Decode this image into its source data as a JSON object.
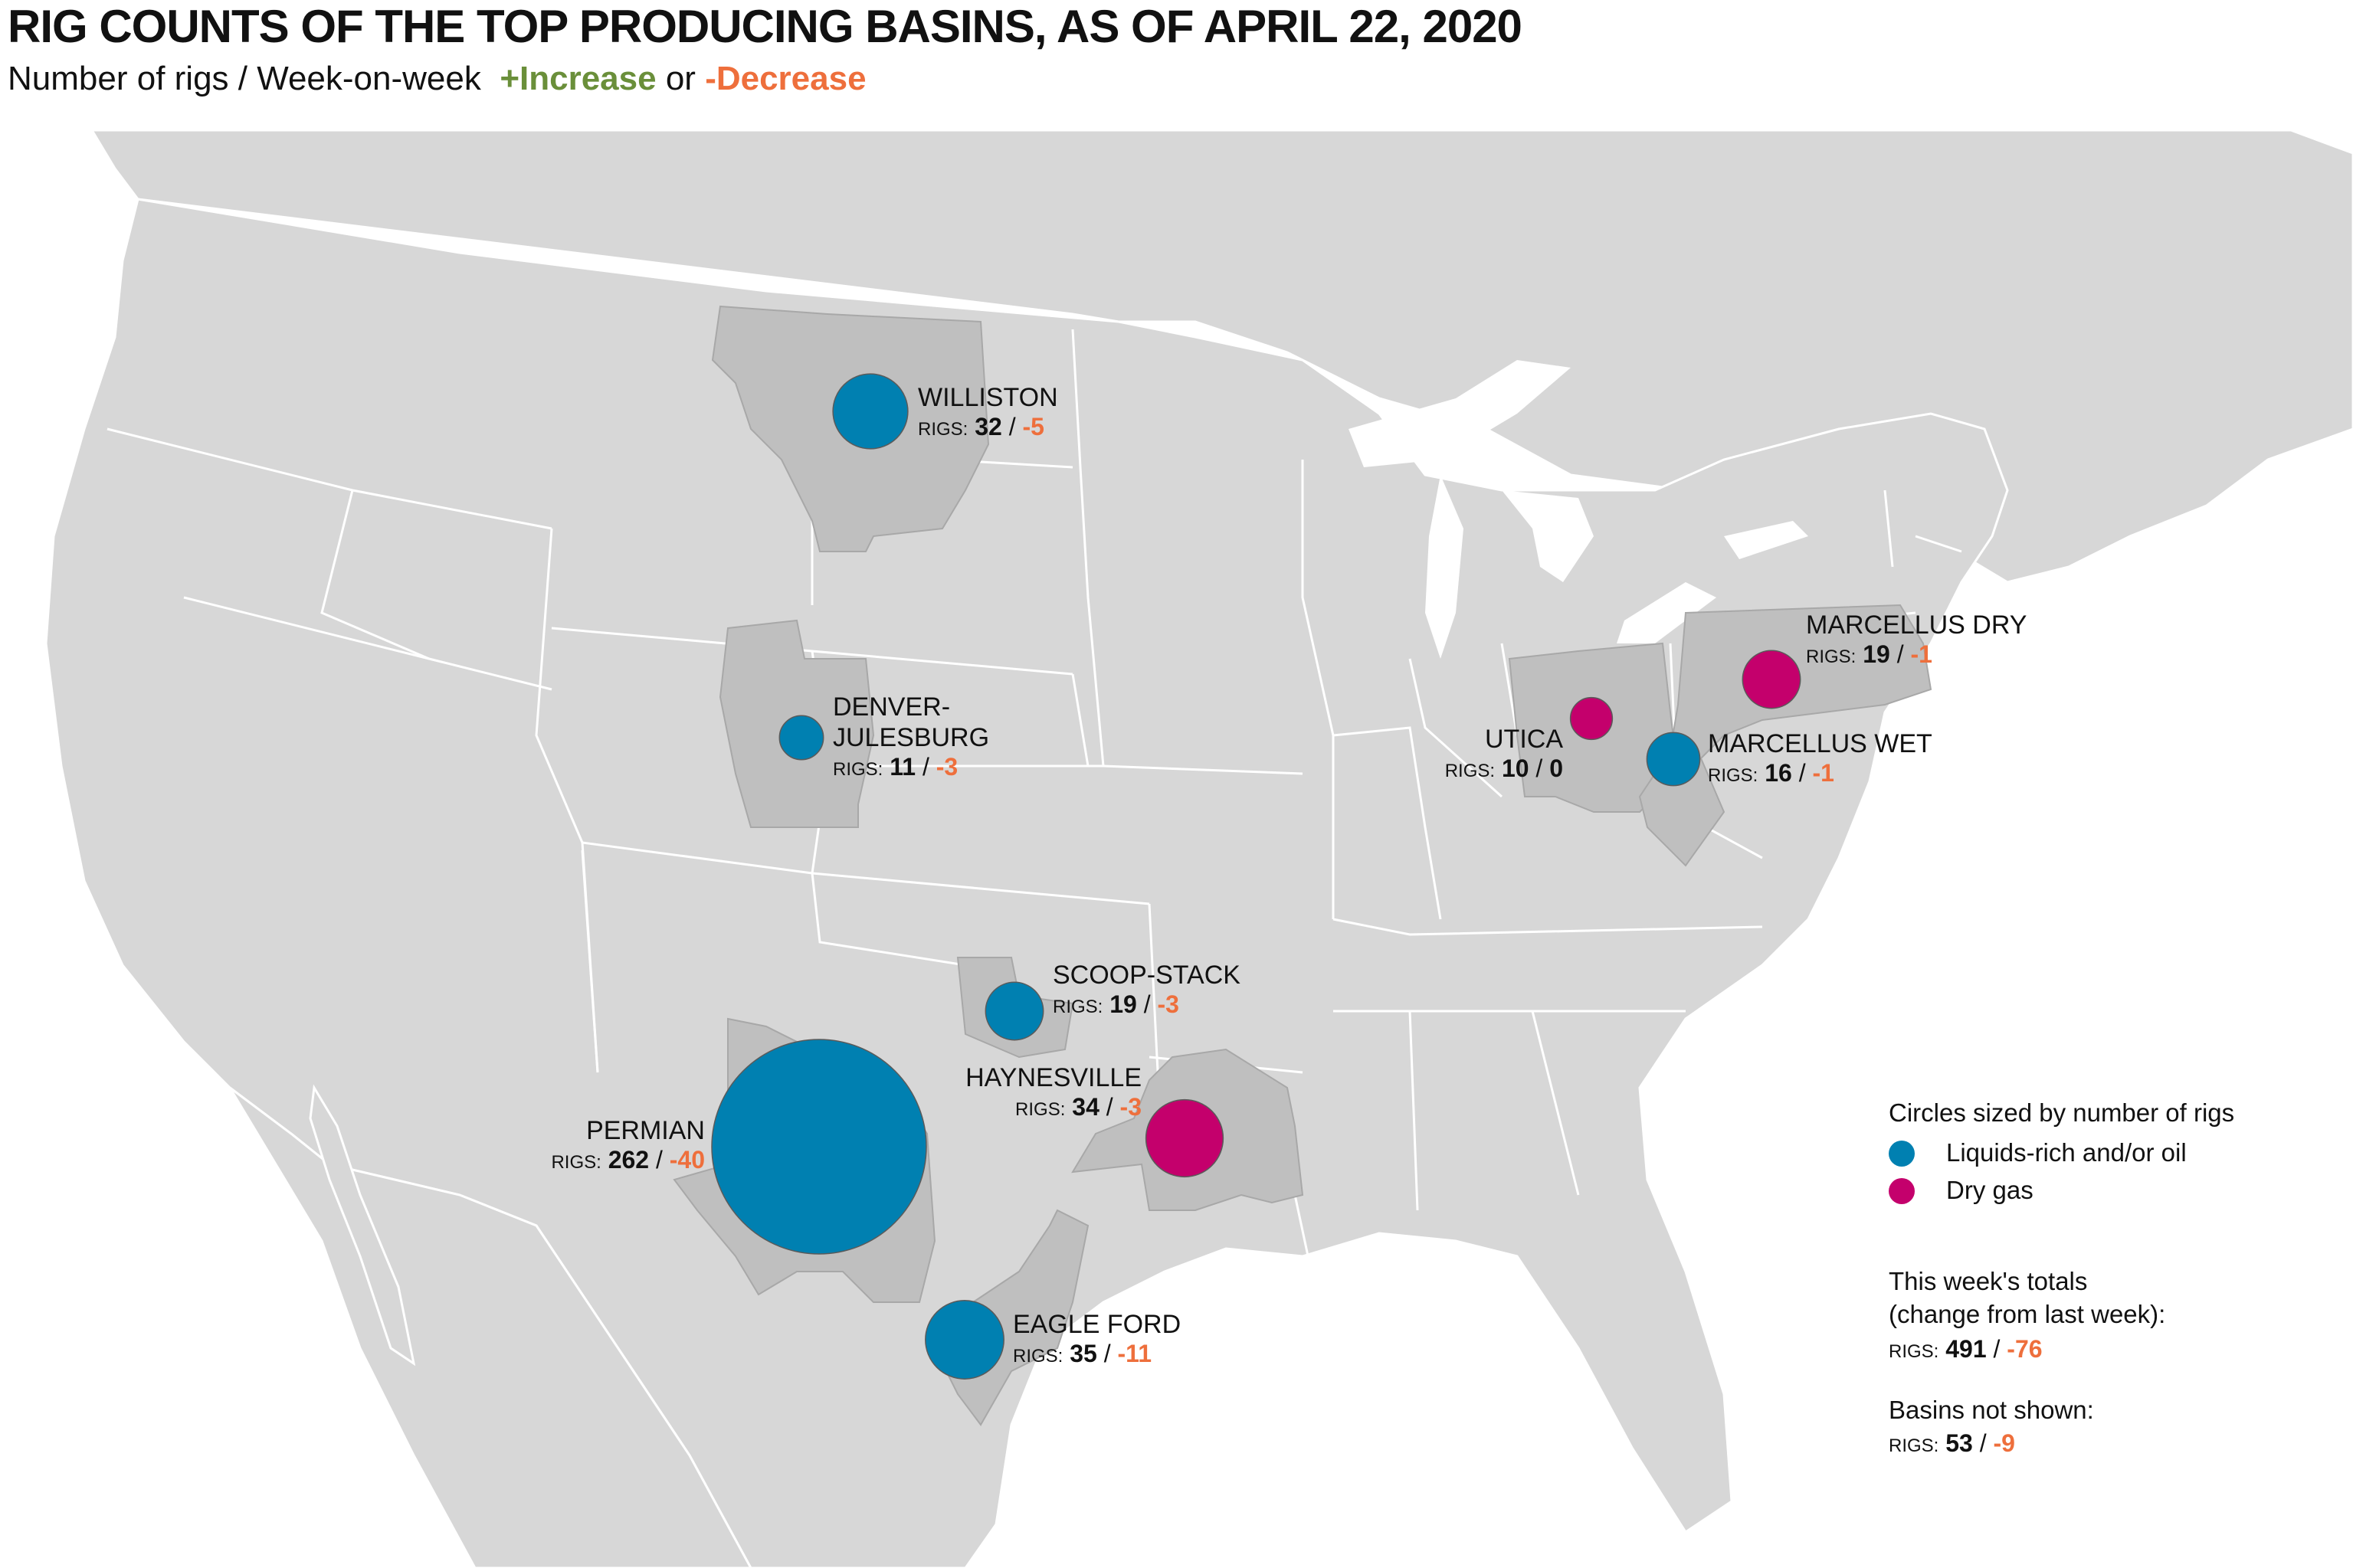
{
  "title": "RIG COUNTS OF THE TOP PRODUCING BASINS, AS OF APRIL 22, 2020",
  "subtitle": {
    "prefix": "Number of rigs / Week-on-week",
    "increase": "+Increase",
    "or": "or",
    "decrease": "-Decrease"
  },
  "colors": {
    "liquids": "#0080b1",
    "dry_gas": "#c4006c",
    "decrease": "#ee6f3c",
    "increase": "#6a8f3a",
    "land": "#d7d7d7",
    "basin": "#bfbfbf"
  },
  "rigs_prefix": "RIGS:",
  "separator": "/",
  "basins": [
    {
      "id": "williston",
      "name": "WILLISTON",
      "rigs": "32",
      "change": "-5",
      "type": "liquids"
    },
    {
      "id": "denver",
      "name_line1": "DENVER-",
      "name_line2": "JULESBURG",
      "rigs": "11",
      "change": "-3",
      "type": "liquids"
    },
    {
      "id": "scoop",
      "name": "SCOOP-STACK",
      "rigs": "19",
      "change": "-3",
      "type": "liquids"
    },
    {
      "id": "permian",
      "name": "PERMIAN",
      "rigs": "262",
      "change": "-40",
      "type": "liquids"
    },
    {
      "id": "haynesville",
      "name": "HAYNESVILLE",
      "rigs": "34",
      "change": "-3",
      "type": "dry_gas"
    },
    {
      "id": "eagleford",
      "name": "EAGLE FORD",
      "rigs": "35",
      "change": "-11",
      "type": "liquids"
    },
    {
      "id": "utica",
      "name": "UTICA",
      "rigs": "10",
      "change": "0",
      "type": "dry_gas"
    },
    {
      "id": "marcellus_dry",
      "name": "MARCELLUS DRY",
      "rigs": "19",
      "change": "-1",
      "type": "dry_gas"
    },
    {
      "id": "marcellus_wet",
      "name": "MARCELLUS WET",
      "rigs": "16",
      "change": "-1",
      "type": "liquids"
    }
  ],
  "legend": {
    "title": "Circles sized by number of rigs",
    "liquids_label": "Liquids-rich and/or oil",
    "dry_gas_label": "Dry gas",
    "totals_line1": "This week's totals",
    "totals_line2": "(change from last week):",
    "totals_rigs": "491",
    "totals_change": "-76",
    "not_shown_title": "Basins not shown:",
    "not_shown_rigs": "53",
    "not_shown_change": "-9"
  }
}
